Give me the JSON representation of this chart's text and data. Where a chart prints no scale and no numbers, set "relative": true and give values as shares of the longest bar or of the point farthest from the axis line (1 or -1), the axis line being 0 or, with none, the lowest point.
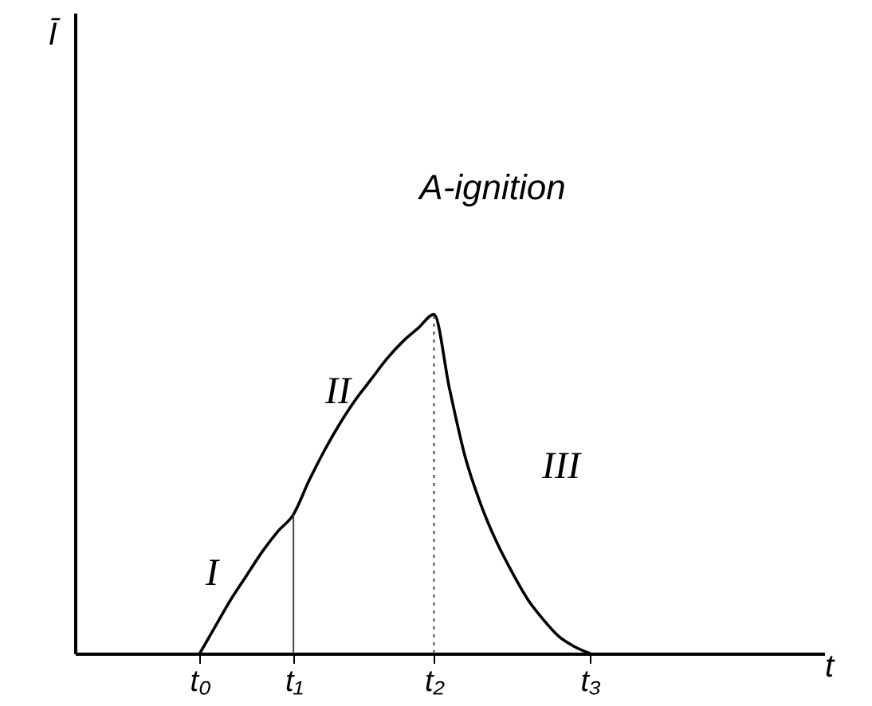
{
  "chart_data": {
    "type": "line",
    "relative": true,
    "xlabel": "t",
    "annotations": [
      "Ī",
      "A-ignition",
      "I",
      "II",
      "III"
    ],
    "categories": [
      null,
      null,
      null,
      null,
      null,
      null,
      null,
      null,
      "t₀",
      null,
      null,
      null,
      null,
      null,
      "t₁",
      null,
      null,
      null,
      null,
      null,
      null,
      null,
      null,
      "t₂",
      null,
      null,
      null,
      null,
      null,
      null,
      null,
      null,
      null,
      "t₃",
      null,
      null,
      null,
      null,
      null,
      null,
      null,
      null,
      null,
      null,
      null,
      null,
      null,
      null,
      null
    ],
    "series": [
      {
        "color": "#000000",
        "values": [
          null,
          null,
          null,
          null,
          null,
          null,
          null,
          null,
          0,
          0.08,
          0.16,
          0.23,
          0.3,
          0.36,
          0.41,
          0.51,
          0.6,
          0.68,
          0.75,
          0.81,
          0.87,
          0.92,
          0.96,
          1,
          0.78,
          0.58,
          0.44,
          0.33,
          0.24,
          0.16,
          0.1,
          0.05,
          0.02,
          0,
          null,
          null,
          null,
          null,
          null,
          null,
          null,
          null,
          null,
          null,
          null,
          null,
          null,
          null,
          null
        ]
      }
    ],
    "ref_lines": [
      {
        "axis": "x",
        "value": "t₁",
        "color": "#444444"
      },
      {
        "axis": "x",
        "value": "t₂",
        "color": "#444444",
        "line_style": "dotted"
      }
    ],
    "grid": false,
    "legend": false,
    "marker": "none",
    "line_style": "solid"
  }
}
